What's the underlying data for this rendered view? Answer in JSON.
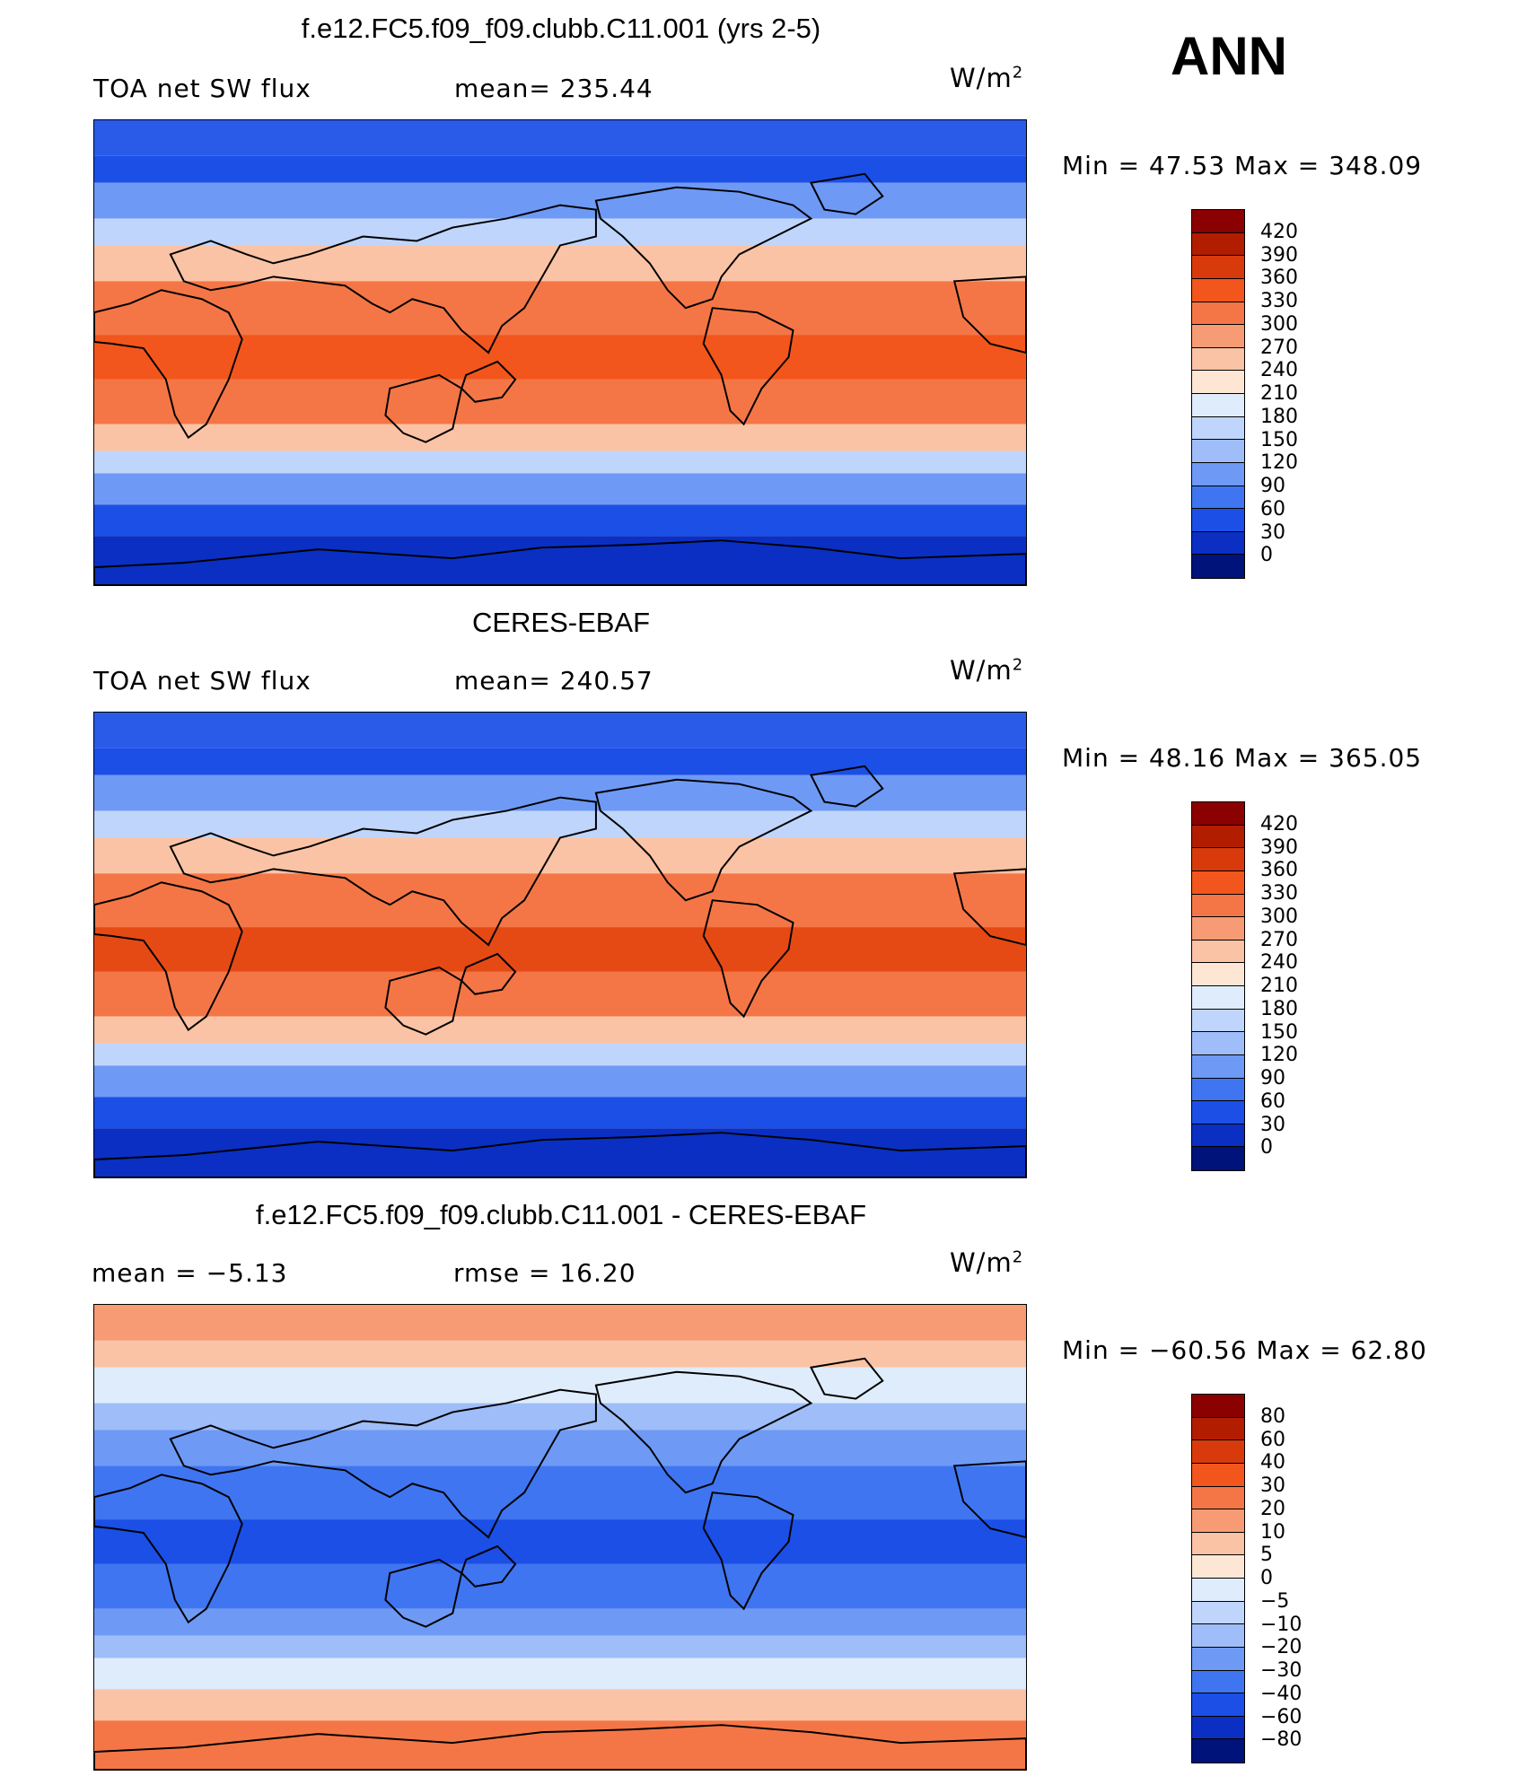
{
  "season": "ANN",
  "panels": [
    {
      "title": "f.e12.FC5.f09_f09.clubb.C11.001 (yrs 2-5)",
      "left_label": "TOA net SW flux",
      "center_label": "mean=  235.44",
      "units": "W/m",
      "units_sup": "2",
      "minmax": "Min =   47.53 Max = 348.09",
      "colorbar": {
        "labels": [
          "420",
          "390",
          "360",
          "330",
          "300",
          "270",
          "240",
          "210",
          "180",
          "150",
          "120",
          "90",
          "60",
          "30",
          "0"
        ],
        "colors": [
          "#8b0000",
          "#b21d00",
          "#d83a0c",
          "#f2561d",
          "#f47646",
          "#f79b74",
          "#fbc3a5",
          "#fde6d4",
          "#dfecfb",
          "#c0d5fb",
          "#9ebdf9",
          "#6e9af5",
          "#3f75f0",
          "#1b4fe6",
          "#0a2fc2",
          "#00137a"
        ]
      },
      "colors": {
        "arctic": "#2a5ae8",
        "cold": "#1b4fe6",
        "cool": "#6e9af5",
        "mild": "#c0d5fb",
        "mid": "#fbc3a5",
        "warm": "#f47646",
        "hot": "#f2561d",
        "antarctic": "#0a2fc2"
      }
    },
    {
      "title": "CERES-EBAF",
      "left_label": "TOA net SW flux",
      "center_label": "mean=  240.57",
      "units": "W/m",
      "units_sup": "2",
      "minmax": "Min =   48.16 Max = 365.05",
      "colorbar": {
        "labels": [
          "420",
          "390",
          "360",
          "330",
          "300",
          "270",
          "240",
          "210",
          "180",
          "150",
          "120",
          "90",
          "60",
          "30",
          "0"
        ],
        "colors": [
          "#8b0000",
          "#b21d00",
          "#d83a0c",
          "#f2561d",
          "#f47646",
          "#f79b74",
          "#fbc3a5",
          "#fde6d4",
          "#dfecfb",
          "#c0d5fb",
          "#9ebdf9",
          "#6e9af5",
          "#3f75f0",
          "#1b4fe6",
          "#0a2fc2",
          "#00137a"
        ]
      },
      "colors": {
        "arctic": "#2a5ae8",
        "cold": "#1b4fe6",
        "cool": "#6e9af5",
        "mild": "#c0d5fb",
        "mid": "#fbc3a5",
        "warm": "#f47646",
        "hot": "#e64a14",
        "antarctic": "#0a2fc2"
      }
    },
    {
      "title": "f.e12.FC5.f09_f09.clubb.C11.001 - CERES-EBAF",
      "left_label": "mean =   −5.13",
      "center_label": "rmse =   16.20",
      "units": "W/m",
      "units_sup": "2",
      "minmax": "Min = −60.56 Max =   62.80",
      "colorbar": {
        "labels": [
          "80",
          "60",
          "40",
          "30",
          "20",
          "10",
          "5",
          "0",
          "−5",
          "−10",
          "−20",
          "−30",
          "−40",
          "−60",
          "−80"
        ],
        "colors": [
          "#8b0000",
          "#b21d00",
          "#d83a0c",
          "#f2561d",
          "#f47646",
          "#f79b74",
          "#fbc3a5",
          "#fde6d4",
          "#dfecfb",
          "#c0d5fb",
          "#9ebdf9",
          "#6e9af5",
          "#3f75f0",
          "#1b4fe6",
          "#0a2fc2",
          "#00137a"
        ]
      },
      "colors": {
        "arctic": "#f79b74",
        "cold": "#fbc3a5",
        "cool": "#dfecfb",
        "mild": "#9ebdf9",
        "mid": "#6e9af5",
        "warm": "#3f75f0",
        "hot": "#1b4fe6",
        "antarctic": "#f47646"
      }
    }
  ]
}
